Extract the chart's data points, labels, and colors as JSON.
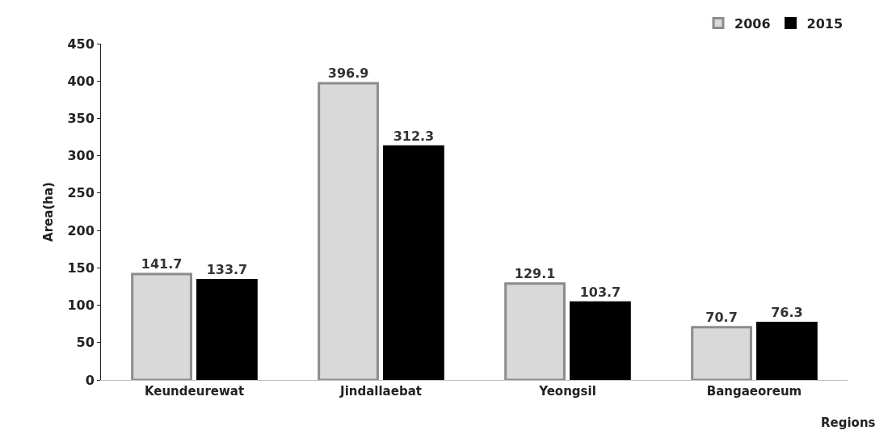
{
  "chart_data": {
    "type": "bar",
    "xlabel": "Regions",
    "ylabel": "Area(ha)",
    "categories": [
      "Keundeurewat",
      "Jindallaebat",
      "Yeongsil",
      "Bangaeoreum"
    ],
    "series": [
      {
        "name": "2006",
        "color": "#d9d9d9",
        "values": [
          141.7,
          396.9,
          129.1,
          70.7
        ]
      },
      {
        "name": "2015",
        "color": "#000000",
        "values": [
          133.7,
          312.3,
          103.7,
          76.3
        ]
      }
    ],
    "ylim": [
      0,
      450
    ],
    "yticks": [
      0,
      50,
      100,
      150,
      200,
      250,
      300,
      350,
      400,
      450
    ],
    "data_labels": true,
    "legend": "top right"
  }
}
